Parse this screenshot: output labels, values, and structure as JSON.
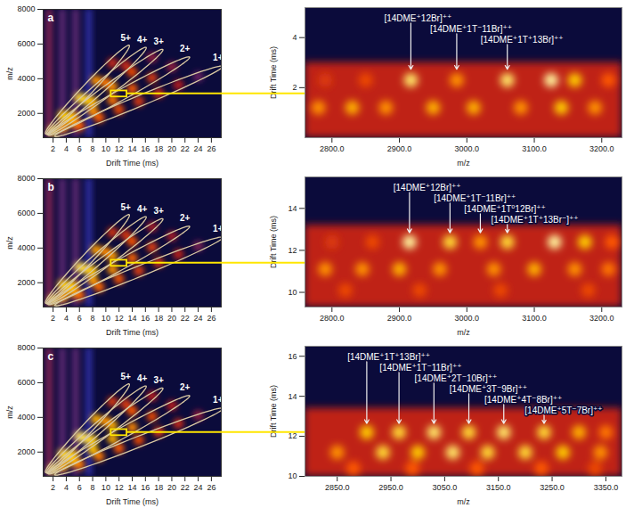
{
  "chart_data": [
    {
      "type": "heatmap",
      "panel": "a",
      "xlabel": "Drift Time (ms)",
      "ylabel": "m/z",
      "xlim": [
        0.5,
        27.5
      ],
      "ylim": [
        600,
        8000
      ],
      "xticks": [
        2,
        4,
        6,
        8,
        10,
        12,
        14,
        16,
        18,
        20,
        22,
        24,
        26
      ],
      "yticks": [
        2000,
        4000,
        6000,
        8000
      ],
      "zlim": [
        0,
        1
      ],
      "streaks": {
        "x": [
          1.4,
          3.4,
          5.4,
          7.4
        ],
        "intensity": [
          0.32,
          0.28,
          0.28,
          0.22
        ]
      },
      "cells": {
        "x": [
          2,
          3.5,
          6,
          9,
          12,
          15,
          18,
          21,
          24,
          5,
          8,
          11,
          14,
          17,
          20,
          5,
          8,
          11,
          14,
          17,
          4,
          7,
          10,
          13,
          3.5,
          6,
          8.5,
          11
        ],
        "y": [
          1000,
          1200,
          1280,
          1750,
          2220,
          2700,
          3170,
          3650,
          4120,
          1530,
          2160,
          2790,
          3420,
          4050,
          4680,
          1850,
          2690,
          3530,
          4380,
          5220,
          1800,
          2790,
          3780,
          4780,
          1890,
          2900,
          3900,
          4900
        ],
        "intensity": [
          0.85,
          0.7,
          0.6,
          0.6,
          0.55,
          0.5,
          0.45,
          0.4,
          0.3,
          0.7,
          0.7,
          0.65,
          0.6,
          0.5,
          0.35,
          0.75,
          0.75,
          0.7,
          0.55,
          0.35,
          0.8,
          0.8,
          0.65,
          0.45,
          0.8,
          0.85,
          0.7,
          0.45
        ]
      },
      "charge_states": [
        {
          "name": "5+",
          "x": [
            1.4,
            13
          ],
          "y": [
            1050,
            5700
          ]
        },
        {
          "name": "4+",
          "x": [
            1.6,
            15.5
          ],
          "y": [
            1000,
            5600
          ]
        },
        {
          "name": "3+",
          "x": [
            1.8,
            18
          ],
          "y": [
            950,
            5500
          ]
        },
        {
          "name": "2+",
          "x": [
            2,
            22
          ],
          "y": [
            900,
            5100
          ]
        },
        {
          "name": "1+",
          "x": [
            3,
            27
          ],
          "y": [
            800,
            4600
          ]
        }
      ],
      "zoom_box": {
        "x": [
          10.8,
          13.2
        ],
        "y": [
          2950,
          3300
        ]
      }
    },
    {
      "type": "heatmap",
      "xlabel": "m/z",
      "ylabel": "Drift Time (ms)",
      "xlim": [
        2760,
        3230
      ],
      "ylim": [
        0,
        5.2
      ],
      "xticks": [
        {
          "value": 2800,
          "label": "2800.0"
        },
        {
          "value": 2900,
          "label": "2900.0"
        },
        {
          "value": 3000,
          "label": "3000.0"
        },
        {
          "value": 3100,
          "label": "3100.0"
        },
        {
          "value": 3200,
          "label": "3200.0"
        }
      ],
      "yticks": [
        2,
        4
      ],
      "zlim": [
        0,
        1
      ],
      "bands": {
        "y1": [
          0
        ],
        "y2": [
          3
        ],
        "intensity": [
          0.42
        ]
      },
      "cells": {
        "x": [
          2790,
          2850,
          2917,
          2985,
          3060,
          3125,
          3160,
          3210,
          2780,
          2830,
          2880,
          2950,
          3010,
          3080,
          3140,
          3190
        ],
        "y": [
          2.3,
          2.3,
          2.3,
          2.3,
          2.3,
          2.3,
          2.3,
          2.3,
          1.2,
          1.2,
          1.2,
          1.2,
          1.2,
          1.2,
          1.2,
          1.2
        ],
        "intensity": [
          0.5,
          0.55,
          0.9,
          0.7,
          0.9,
          0.95,
          0.8,
          0.6,
          0.7,
          0.75,
          0.7,
          0.75,
          0.75,
          0.7,
          0.8,
          0.7
        ]
      },
      "annotations": [
        {
          "text": "[14DME⁺12Br]⁺⁺",
          "x": 2917,
          "y": 2.7
        },
        {
          "text": "[14DME⁺1T⁻11Br]⁺⁺",
          "x": 2985,
          "y": 2.7
        },
        {
          "text": "[14DME⁺1T⁺13Br]⁺⁺",
          "x": 3060,
          "y": 2.7
        }
      ]
    },
    {
      "type": "heatmap",
      "panel": "b",
      "xlabel": "Drift Time (ms)",
      "ylabel": "m/z",
      "xlim": [
        0.5,
        27.5
      ],
      "ylim": [
        600,
        8000
      ],
      "xticks": [
        2,
        4,
        6,
        8,
        10,
        12,
        14,
        16,
        18,
        20,
        22,
        24,
        26
      ],
      "yticks": [
        2000,
        4000,
        6000,
        8000
      ],
      "zlim": [
        0,
        1
      ],
      "streaks": {
        "x": [
          1.4,
          3.4,
          5.4,
          7.4
        ],
        "intensity": [
          0.32,
          0.28,
          0.28,
          0.22
        ]
      },
      "cells": {
        "x": [
          2,
          3.5,
          6,
          9,
          12,
          15,
          18,
          21,
          24,
          5,
          8,
          11,
          14,
          17,
          20,
          5,
          8,
          11,
          14,
          17,
          4,
          7,
          10,
          13,
          3.5,
          6,
          8.5,
          11
        ],
        "y": [
          1000,
          1200,
          1280,
          1750,
          2220,
          2700,
          3170,
          3650,
          4120,
          1530,
          2160,
          2790,
          3420,
          4050,
          4680,
          1850,
          2690,
          3530,
          4380,
          5220,
          1800,
          2790,
          3780,
          4780,
          1890,
          2900,
          3900,
          4900
        ],
        "intensity": [
          0.85,
          0.72,
          0.62,
          0.62,
          0.58,
          0.52,
          0.48,
          0.42,
          0.32,
          0.72,
          0.72,
          0.7,
          0.62,
          0.52,
          0.38,
          0.78,
          0.78,
          0.72,
          0.58,
          0.38,
          0.82,
          0.82,
          0.68,
          0.48,
          0.82,
          0.88,
          0.72,
          0.48
        ]
      },
      "charge_states": [
        {
          "name": "5+",
          "x": [
            1.4,
            13
          ],
          "y": [
            1050,
            5700
          ]
        },
        {
          "name": "4+",
          "x": [
            1.6,
            15.5
          ],
          "y": [
            1000,
            5600
          ]
        },
        {
          "name": "3+",
          "x": [
            1.8,
            18
          ],
          "y": [
            950,
            5500
          ]
        },
        {
          "name": "2+",
          "x": [
            2,
            22
          ],
          "y": [
            900,
            5100
          ]
        },
        {
          "name": "1+",
          "x": [
            3,
            27
          ],
          "y": [
            800,
            4500
          ]
        }
      ],
      "zoom_box": {
        "x": [
          10.8,
          13.2
        ],
        "y": [
          2950,
          3300
        ]
      }
    },
    {
      "type": "heatmap",
      "xlabel": "m/z",
      "ylabel": "Drift Time (ms)",
      "xlim": [
        2760,
        3230
      ],
      "ylim": [
        9.3,
        15.5
      ],
      "xticks": [
        {
          "value": 2800,
          "label": "2800.0"
        },
        {
          "value": 2900,
          "label": "2900.0"
        },
        {
          "value": 3000,
          "label": "3000.0"
        },
        {
          "value": 3100,
          "label": "3100.0"
        },
        {
          "value": 3200,
          "label": "3200.0"
        }
      ],
      "yticks": [
        10,
        12,
        14
      ],
      "zlim": [
        0,
        1
      ],
      "bands": {
        "y1": [
          9.3
        ],
        "y2": [
          13.2
        ],
        "intensity": [
          0.42
        ]
      },
      "cells": {
        "x": [
          2800,
          2860,
          2915,
          2975,
          3020,
          3060,
          3130,
          3175,
          3215,
          2790,
          2845,
          2900,
          2960,
          3040,
          3100,
          3160,
          3210,
          2820,
          2930,
          3050,
          3180
        ],
        "y": [
          12.4,
          12.4,
          12.4,
          12.4,
          12.4,
          12.4,
          12.4,
          12.4,
          12.4,
          11.1,
          11.1,
          11.1,
          11.1,
          11.1,
          11.1,
          11.1,
          11.1,
          10.1,
          10.1,
          10.1,
          10.1
        ],
        "intensity": [
          0.5,
          0.55,
          0.95,
          0.85,
          0.7,
          0.85,
          0.95,
          0.8,
          0.6,
          0.7,
          0.7,
          0.75,
          0.7,
          0.7,
          0.75,
          0.7,
          0.65,
          0.55,
          0.55,
          0.55,
          0.55
        ]
      },
      "annotations": [
        {
          "text": "[14DME⁺12Br]⁺⁺",
          "x": 2915,
          "y": 12.8
        },
        {
          "text": "[14DME⁺1T⁻11Br]⁺⁺",
          "x": 2975,
          "y": 12.8
        },
        {
          "text": "[14DME⁺1T⁰12Br]⁺⁺",
          "x": 3020,
          "y": 12.8
        },
        {
          "text": "[14DME⁺1T⁺13Br⁻]⁺⁺",
          "x": 3060,
          "y": 12.8
        }
      ]
    },
    {
      "type": "heatmap",
      "panel": "c",
      "xlabel": "Drift Time (ms)",
      "ylabel": "m/z",
      "xlim": [
        0.5,
        27.5
      ],
      "ylim": [
        600,
        8000
      ],
      "xticks": [
        2,
        4,
        6,
        8,
        10,
        12,
        14,
        16,
        18,
        20,
        22,
        24,
        26
      ],
      "yticks": [
        2000,
        4000,
        6000,
        8000
      ],
      "zlim": [
        0,
        1
      ],
      "streaks": {
        "x": [
          1.4,
          3.4,
          5.4,
          7.4
        ],
        "intensity": [
          0.32,
          0.28,
          0.28,
          0.22
        ]
      },
      "cells": {
        "x": [
          2,
          3.5,
          6,
          9,
          12,
          15,
          18,
          21,
          24,
          5,
          8,
          11,
          14,
          17,
          20,
          5,
          8,
          11,
          14,
          17,
          4,
          7,
          10,
          13,
          3.5,
          6,
          8.5,
          11
        ],
        "y": [
          1000,
          1200,
          1280,
          1750,
          2220,
          2700,
          3170,
          3650,
          4120,
          1530,
          2160,
          2790,
          3420,
          4050,
          4680,
          1850,
          2690,
          3530,
          4380,
          5220,
          1800,
          2790,
          3780,
          4780,
          1890,
          2900,
          3900,
          4900
        ],
        "intensity": [
          0.88,
          0.75,
          0.65,
          0.65,
          0.6,
          0.55,
          0.5,
          0.45,
          0.35,
          0.75,
          0.78,
          0.75,
          0.68,
          0.55,
          0.4,
          0.8,
          0.8,
          0.75,
          0.6,
          0.4,
          0.85,
          0.85,
          0.7,
          0.5,
          0.85,
          0.9,
          0.75,
          0.5
        ]
      },
      "charge_states": [
        {
          "name": "5+",
          "x": [
            1.4,
            13
          ],
          "y": [
            1050,
            5700
          ]
        },
        {
          "name": "4+",
          "x": [
            1.6,
            15.5
          ],
          "y": [
            1000,
            5600
          ]
        },
        {
          "name": "3+",
          "x": [
            1.8,
            18
          ],
          "y": [
            950,
            5500
          ]
        },
        {
          "name": "2+",
          "x": [
            2,
            22
          ],
          "y": [
            900,
            5100
          ]
        },
        {
          "name": "1+",
          "x": [
            3,
            27
          ],
          "y": [
            800,
            4400
          ]
        }
      ],
      "zoom_box": {
        "x": [
          10.8,
          13.2
        ],
        "y": [
          2950,
          3300
        ]
      }
    },
    {
      "type": "heatmap",
      "xlabel": "m/z",
      "ylabel": "Drift Time (ms)",
      "xlim": [
        2790,
        3380
      ],
      "ylim": [
        10,
        16.5
      ],
      "xticks": [
        {
          "value": 2850,
          "label": "2850.0"
        },
        {
          "value": 2950,
          "label": "2950.0"
        },
        {
          "value": 3050,
          "label": "3050.0"
        },
        {
          "value": 3150,
          "label": "3150.0"
        },
        {
          "value": 3250,
          "label": "3250.0"
        },
        {
          "value": 3350,
          "label": "3350.0"
        }
      ],
      "yticks": [
        10,
        12,
        14,
        16
      ],
      "zlim": [
        0,
        1
      ],
      "bands": {
        "y1": [
          10
        ],
        "y2": [
          13.4
        ],
        "intensity": [
          0.42
        ]
      },
      "cells": {
        "x": [
          2905,
          2965,
          3030,
          3095,
          3160,
          3235,
          3300,
          3350,
          2850,
          2935,
          3000,
          3065,
          3130,
          3200,
          3270,
          3340,
          2880,
          2990,
          3110,
          3230,
          3330
        ],
        "y": [
          12.2,
          12.2,
          12.2,
          12.2,
          12.2,
          12.2,
          12.2,
          12.2,
          11.2,
          11.2,
          11.2,
          11.2,
          11.2,
          11.2,
          11.2,
          11.2,
          10.4,
          10.4,
          10.4,
          10.4,
          10.4
        ],
        "intensity": [
          0.8,
          0.85,
          0.9,
          0.85,
          0.9,
          0.85,
          0.75,
          0.65,
          0.7,
          0.85,
          0.8,
          0.9,
          0.85,
          0.85,
          0.8,
          0.7,
          0.6,
          0.6,
          0.6,
          0.6,
          0.55
        ]
      },
      "annotations": [
        {
          "text": "[14DME⁺1T⁺13Br]⁺⁺",
          "x": 2905,
          "y": 12.6
        },
        {
          "text": "[14DME⁺1T⁻11Br]⁺⁺",
          "x": 2965,
          "y": 12.6
        },
        {
          "text": "[14DME⁺2T⁻10Br]⁺⁺",
          "x": 3030,
          "y": 12.6
        },
        {
          "text": "[14DME⁺3T⁻9Br]⁺⁺",
          "x": 3095,
          "y": 12.6
        },
        {
          "text": "[14DME⁺4T⁻8Br]⁺⁺",
          "x": 3160,
          "y": 12.6
        },
        {
          "text": "[14DME⁺5T⁻7Br]⁺⁺",
          "x": 3235,
          "y": 12.6
        }
      ]
    }
  ]
}
